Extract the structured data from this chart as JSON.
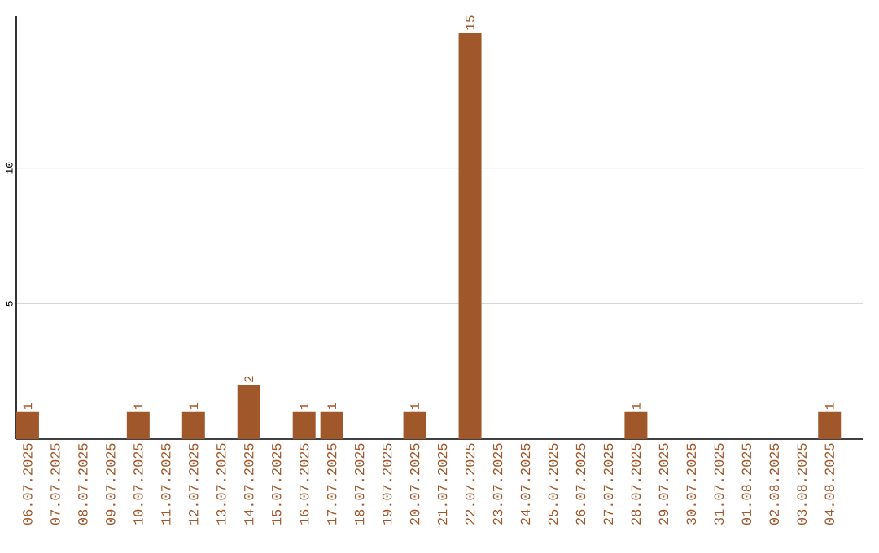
{
  "chart_data": {
    "type": "bar",
    "categories": [
      "06.07.2025",
      "07.07.2025",
      "08.07.2025",
      "09.07.2025",
      "10.07.2025",
      "11.07.2025",
      "12.07.2025",
      "13.07.2025",
      "14.07.2025",
      "15.07.2025",
      "16.07.2025",
      "17.07.2025",
      "18.07.2025",
      "19.07.2025",
      "20.07.2025",
      "21.07.2025",
      "22.07.2025",
      "23.07.2025",
      "24.07.2025",
      "25.07.2025",
      "26.07.2025",
      "27.07.2025",
      "28.07.2025",
      "29.07.2025",
      "30.07.2025",
      "31.07.2025",
      "01.08.2025",
      "02.08.2025",
      "03.08.2025",
      "04.08.2025"
    ],
    "values": [
      1,
      0,
      0,
      0,
      1,
      0,
      1,
      0,
      2,
      0,
      1,
      1,
      0,
      0,
      1,
      0,
      15,
      0,
      0,
      0,
      0,
      0,
      1,
      0,
      0,
      0,
      0,
      0,
      0,
      1
    ],
    "value_labels": [
      "1",
      null,
      null,
      null,
      "1",
      null,
      "1",
      null,
      "2",
      null,
      "1",
      "1",
      null,
      null,
      "1",
      null,
      "15",
      null,
      null,
      null,
      null,
      null,
      "1",
      null,
      null,
      null,
      null,
      null,
      null,
      "1"
    ],
    "color": "#a0572a",
    "ylim": [
      0,
      15.6
    ],
    "yticks": [
      5,
      10
    ],
    "grid": "y"
  }
}
